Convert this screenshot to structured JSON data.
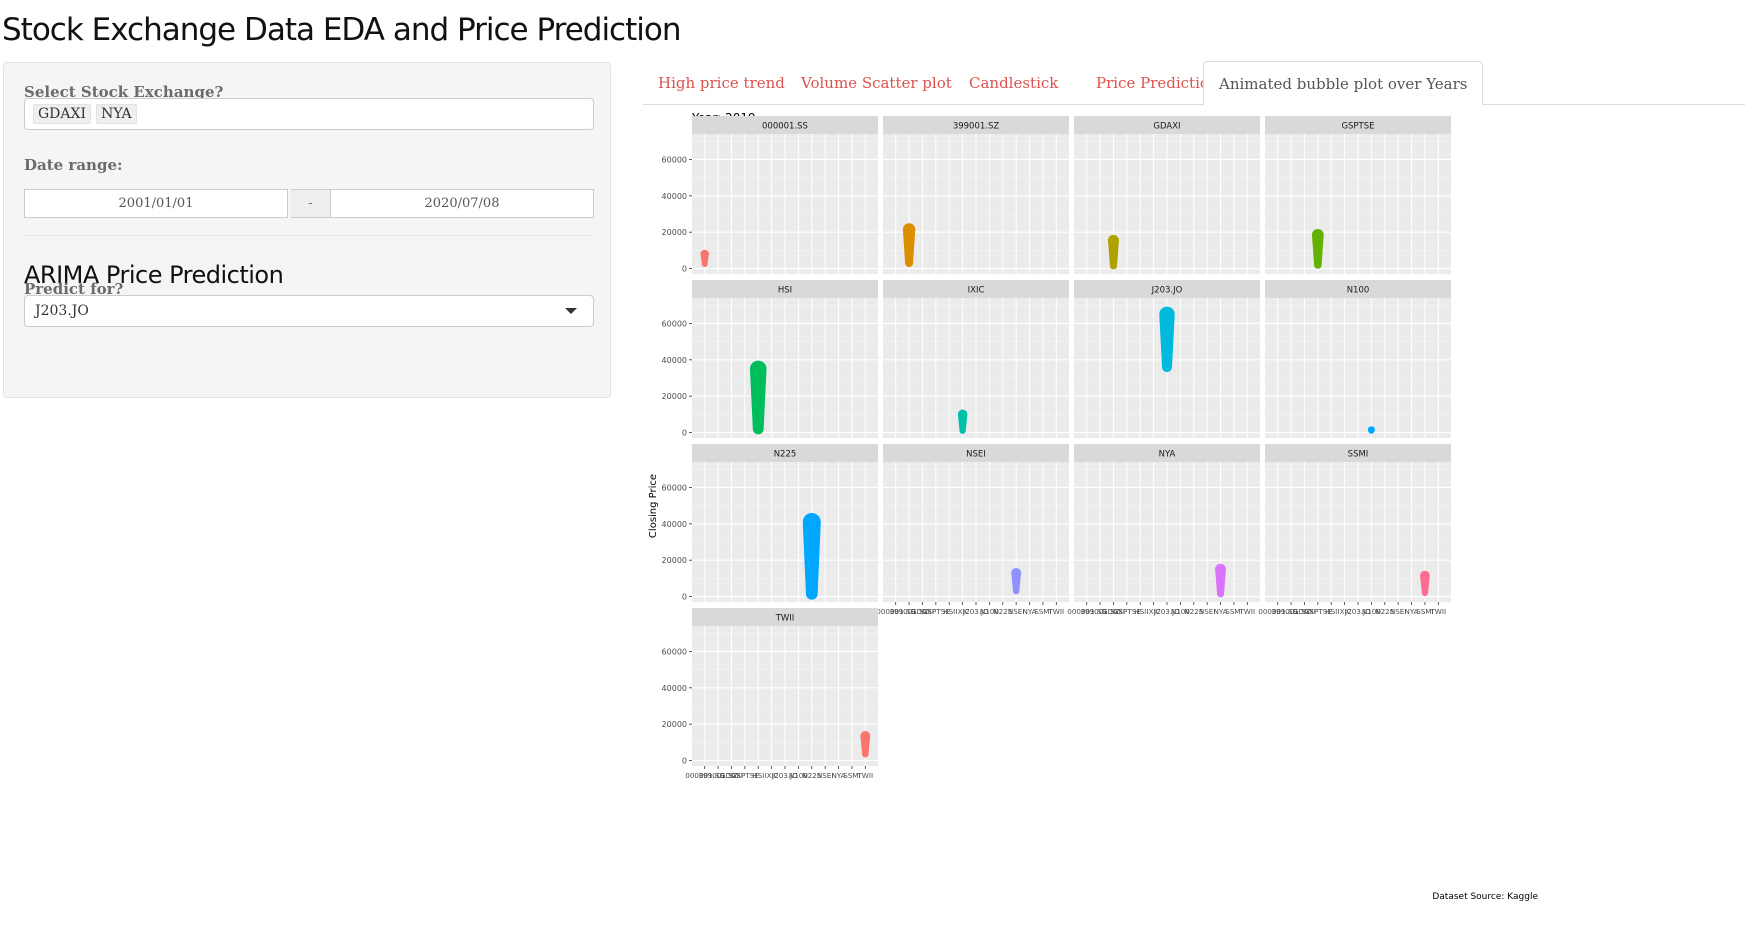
{
  "app": {
    "title": "Stock Exchange Data EDA and Price Prediction"
  },
  "sidebar": {
    "exchange_label": "Select Stock Exchange?",
    "selected_exchanges": [
      "GDAXI",
      "NYA"
    ],
    "date_label": "Date range:",
    "date_start": "2001/01/01",
    "date_sep": "-",
    "date_end": "2020/07/08",
    "section_title": "ARIMA Price Prediction",
    "predict_label": "Predict for?",
    "predict_value": "J203.JO"
  },
  "tabs": [
    {
      "label": "High price trend",
      "active": false
    },
    {
      "label": "Volume Scatter plot",
      "active": false
    },
    {
      "label": "Candlestick",
      "active": false
    },
    {
      "label": "Price Prediction",
      "active": false
    },
    {
      "label": "Animated bubble plot over Years",
      "active": true
    }
  ],
  "colors": {
    "tab_link": "#d9534f",
    "panel_bg": "#ebebeb",
    "strip_bg": "#d9d9d9"
  },
  "chart_data": {
    "type": "scatter",
    "title": "Year: 2019",
    "ylabel": "Closing Price",
    "xlabel": "",
    "caption": "Dataset Source: Kaggle",
    "ylim": [
      -3000,
      74000
    ],
    "yticks": [
      0,
      20000,
      40000,
      60000
    ],
    "ytick_labels": [
      "0",
      "20000",
      "40000",
      "60000"
    ],
    "categories": [
      "000001.SS",
      "399001.SZ",
      "GDAXI",
      "GSPTSE",
      "HSI",
      "IXIC",
      "J203.JO",
      "N100",
      "N225",
      "NSEI",
      "NYA",
      "SSMI",
      "TWII"
    ],
    "grid": true,
    "facets": [
      {
        "name": "000001.SS",
        "color": "#F8766D",
        "low": 2500,
        "high": 8000
      },
      {
        "name": "399001.SZ",
        "color": "#DB8E00",
        "low": 3000,
        "high": 21500
      },
      {
        "name": "GDAXI",
        "color": "#AEA200",
        "low": 1500,
        "high": 15500
      },
      {
        "name": "GSPTSE",
        "color": "#64B200",
        "low": 2000,
        "high": 18500
      },
      {
        "name": "HSI",
        "color": "#00BD5C",
        "low": 2000,
        "high": 35000
      },
      {
        "name": "IXIC",
        "color": "#00C1A7",
        "low": 1000,
        "high": 10000
      },
      {
        "name": "J203.JO",
        "color": "#00BADE",
        "low": 36000,
        "high": 65000
      },
      {
        "name": "N100",
        "color": "#00A6FF",
        "low": 1000,
        "high": 1500
      },
      {
        "name": "N225",
        "color": "#00A6FF",
        "low": 1500,
        "high": 41000
      },
      {
        "name": "NSEI",
        "color": "#8F91FF",
        "low": 3000,
        "high": 13000
      },
      {
        "name": "NYA",
        "color": "#D874FD",
        "low": 1500,
        "high": 15000
      },
      {
        "name": "SSMI",
        "color": "#FF6C91",
        "low": 2000,
        "high": 11500
      },
      {
        "name": "TWII",
        "color": "#F8766D",
        "low": 3500,
        "high": 13500
      }
    ]
  }
}
